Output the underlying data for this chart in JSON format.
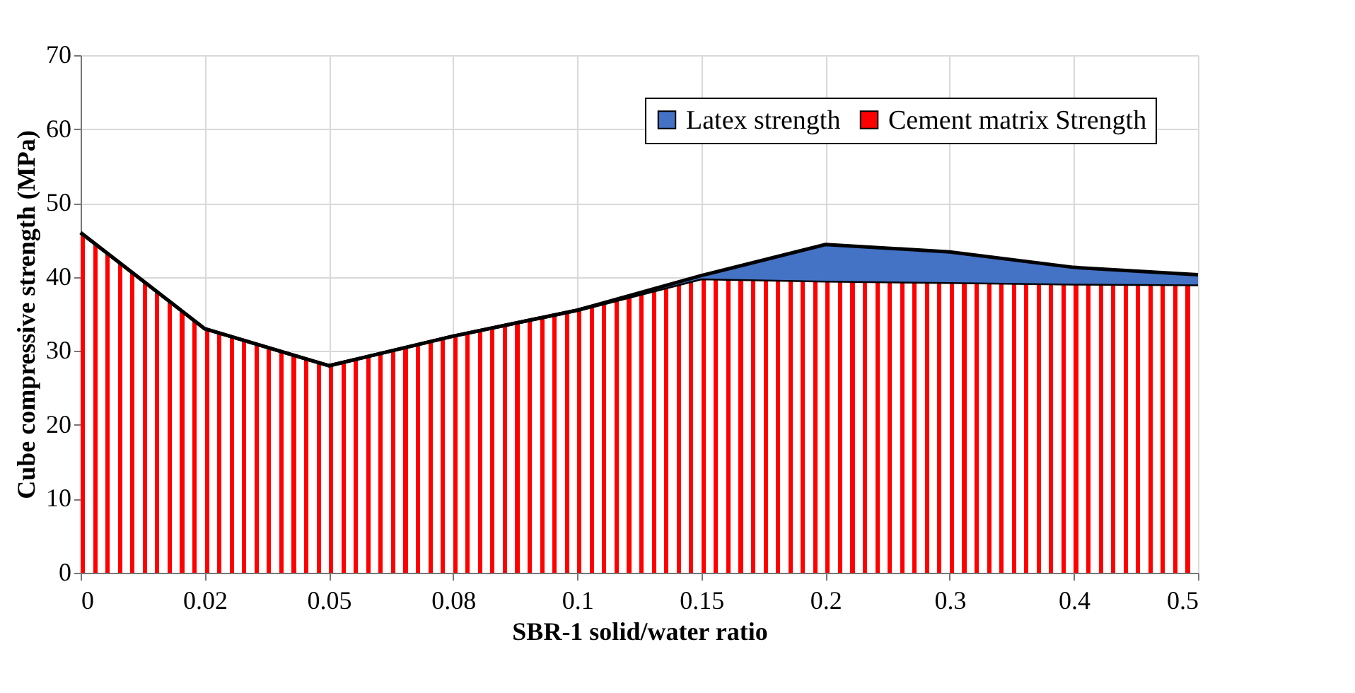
{
  "chart_data": {
    "type": "area",
    "stacked": true,
    "xlabel": "SBR-1 solid/water ratio",
    "ylabel": "Cube compressive strength (MPa)",
    "categories": [
      "0",
      "0.02",
      "0.05",
      "0.08",
      "0.1",
      "0.15",
      "0.2",
      "0.3",
      "0.4",
      "0.5"
    ],
    "series": [
      {
        "name": "Cement matrix Strength",
        "color": "#ff0000",
        "values": [
          46,
          33,
          28,
          32,
          35.5,
          39.8,
          39.5,
          39.3,
          39.1,
          39
        ]
      },
      {
        "name": "Latex strength",
        "color": "#4472c4",
        "values": [
          0,
          0,
          0,
          0,
          0,
          0.4,
          4.9,
          4.1,
          2.2,
          1.3
        ]
      }
    ],
    "ylim": [
      0,
      70
    ],
    "yticks": [
      0,
      10,
      20,
      30,
      40,
      50,
      60,
      70
    ],
    "grid": true,
    "legend": "top right"
  }
}
